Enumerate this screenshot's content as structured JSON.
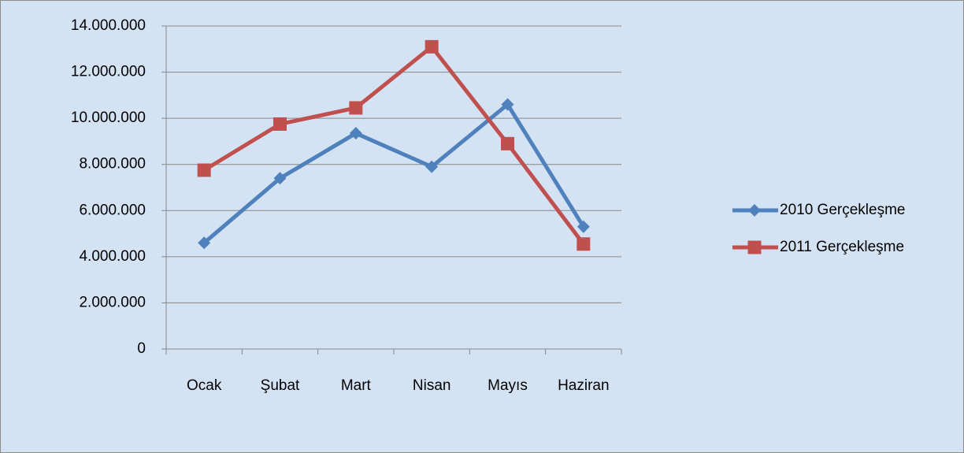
{
  "chart_data": {
    "type": "line",
    "categories": [
      "Ocak",
      "Şubat",
      "Mart",
      "Nisan",
      "Mayıs",
      "Haziran"
    ],
    "series": [
      {
        "name": "2010 Gerçekleşme",
        "color": "#4f81bd",
        "marker": "diamond",
        "values": [
          4600000,
          7400000,
          9350000,
          7900000,
          10600000,
          5300000
        ]
      },
      {
        "name": "2011 Gerçekleşme",
        "color": "#c0504d",
        "marker": "square",
        "values": [
          7750000,
          9750000,
          10450000,
          13100000,
          8900000,
          4550000
        ]
      }
    ],
    "ylim": [
      0,
      14000000
    ],
    "yticks": [
      0,
      {
        "value": 2000000,
        "label": "2.000.000"
      },
      {
        "value": 4000000,
        "label": "4.000.000"
      },
      {
        "value": 6000000,
        "label": "6.000.000"
      },
      {
        "value": 8000000,
        "label": "8.000.000"
      },
      {
        "value": 10000000,
        "label": "10.000.000"
      },
      {
        "value": 12000000,
        "label": "12.000.000"
      },
      {
        "value": 14000000,
        "label": "14.000.000"
      }
    ],
    "grid": true,
    "legend": "right"
  }
}
